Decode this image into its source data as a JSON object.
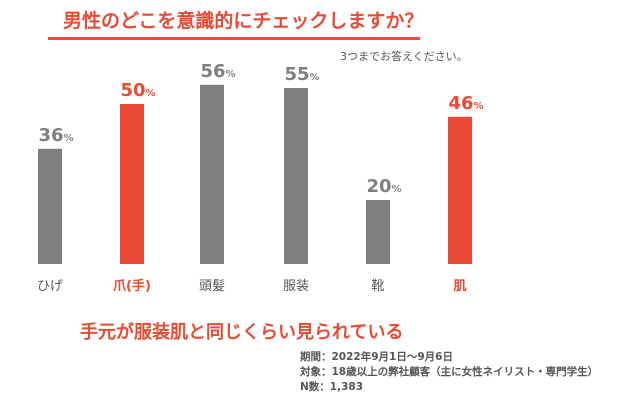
{
  "header": {
    "title": "男性のどこを意識的にチェックしますか？",
    "subnote": "3つまでお答えください。"
  },
  "chart_data": {
    "type": "bar",
    "title": "男性のどこを意識的にチェックしますか？",
    "categories": [
      "ひげ",
      "爪(手)",
      "頭髪",
      "服装",
      "靴",
      "肌"
    ],
    "values": [
      36,
      50,
      56,
      55,
      20,
      46
    ],
    "highlighted": [
      false,
      true,
      false,
      false,
      false,
      true
    ],
    "value_suffix": "%",
    "ylim": [
      0,
      60
    ],
    "xlabel": "",
    "ylabel": "",
    "colors": {
      "default": "#7f7f7f",
      "highlight": "#ea4a33",
      "label_default": "#555555"
    }
  },
  "conclusion": "手元が服装肌と同じくらい見られている",
  "footer": {
    "period": "期間：2022年9月1日～9月6日",
    "target": "対象：18歳以上の弊社顧客（主に女性ネイリスト・専門学生）",
    "n": "N数：1,383"
  }
}
